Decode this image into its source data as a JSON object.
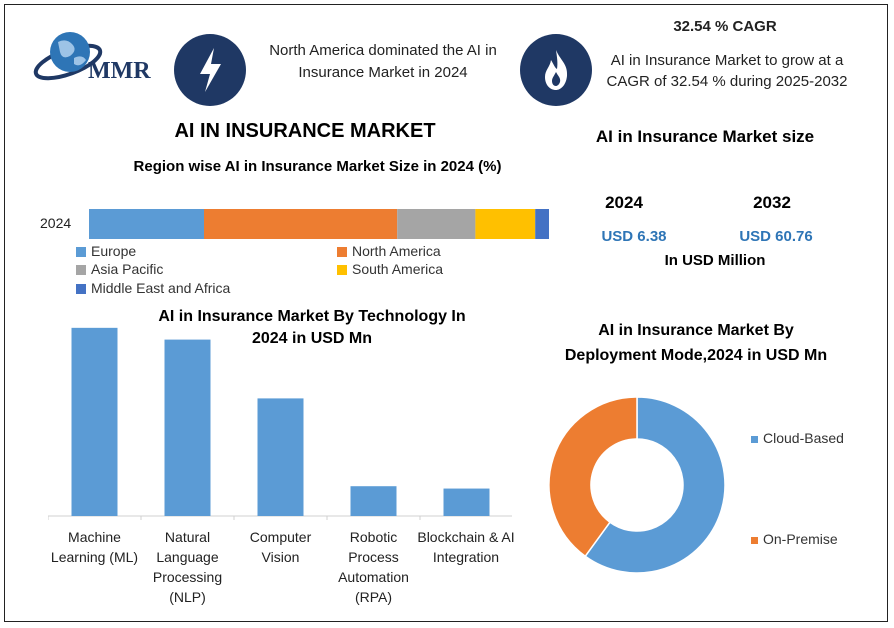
{
  "header": {
    "logo_text": "MMR",
    "dominance_text": "North America dominated the AI in Insurance Market in 2024",
    "cagr_title": "32.54 % CAGR",
    "cagr_text": "AI in Insurance Market to grow at a CAGR of 32.54 % during 2025-2032"
  },
  "main_title": "AI IN INSURANCE MARKET",
  "market_size": {
    "title": "AI in Insurance Market size",
    "year1": "2024",
    "year2": "2032",
    "value1": "USD 6.38",
    "value2": "USD 60.76",
    "unit": "In USD Million"
  },
  "colors": {
    "europe": "#5b9bd5",
    "north_america": "#ed7d31",
    "asia_pacific": "#a5a5a5",
    "south_america": "#ffc000",
    "mea": "#4472c4",
    "accent_title": "#c55a11",
    "value_blue": "#2e75b6",
    "icon_bg": "#1f3864"
  },
  "chart_data": [
    {
      "type": "bar",
      "orientation": "horizontal-stacked",
      "title": "Region wise AI in Insurance Market Size in 2024 (%)",
      "categories": [
        "2024"
      ],
      "series": [
        {
          "name": "Europe",
          "values": [
            25
          ]
        },
        {
          "name": "North America",
          "values": [
            42
          ]
        },
        {
          "name": "Asia Pacific",
          "values": [
            17
          ]
        },
        {
          "name": "South America",
          "values": [
            13
          ]
        },
        {
          "name": "Middle East and Africa",
          "values": [
            3
          ]
        }
      ],
      "xlim": [
        0,
        100
      ]
    },
    {
      "type": "bar",
      "title": "AI in Insurance Market By Technology In 2024 in USD Mn",
      "categories": [
        "Machine Learning (ML)",
        "Natural Language Processing (NLP)",
        "Computer Vision",
        "Robotic Process Automation (RPA)",
        "Blockchain & AI Integration"
      ],
      "values": [
        2.4,
        2.25,
        1.5,
        0.38,
        0.35
      ],
      "ylim": [
        0,
        2.5
      ]
    },
    {
      "type": "pie",
      "style": "donut",
      "title": "AI in Insurance Market By Deployment Mode,2024 in USD Mn",
      "labels": [
        "Cloud-Based",
        "On-Premise"
      ],
      "values": [
        60,
        40
      ]
    }
  ]
}
